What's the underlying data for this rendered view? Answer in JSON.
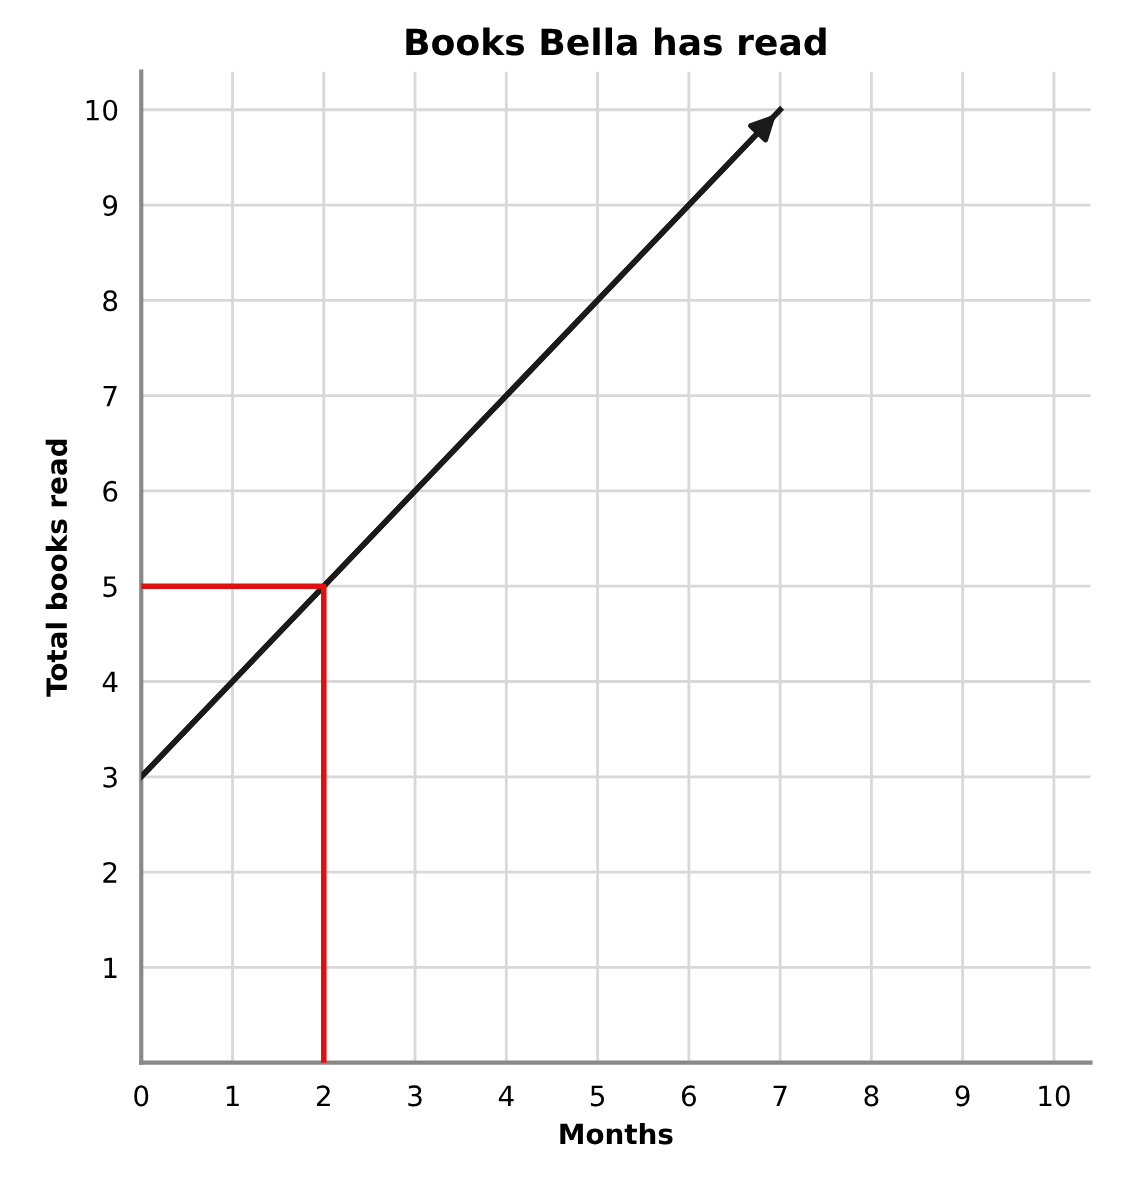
{
  "chart_data": {
    "type": "line",
    "title": "Books Bella has read",
    "xlabel": "Months",
    "ylabel": "Total books read",
    "series": [
      {
        "x": [
          0,
          7
        ],
        "values": [
          3,
          10
        ],
        "color": "#1a1a1a"
      },
      {
        "x": [
          0,
          2,
          2
        ],
        "values": [
          5,
          5,
          0
        ],
        "color": "#e01010"
      }
    ],
    "xlim": [
      0,
      10.4
    ],
    "ylim": [
      0,
      10.4
    ],
    "xticks": [
      0,
      1,
      2,
      3,
      4,
      5,
      6,
      7,
      8,
      9,
      10
    ],
    "yticks": [
      {
        "value": 0,
        "label": null
      },
      1,
      2,
      3,
      4,
      5,
      6,
      7,
      8,
      9,
      10
    ],
    "grid": true,
    "marker": "none",
    "line_style": "solid",
    "legend": false
  }
}
